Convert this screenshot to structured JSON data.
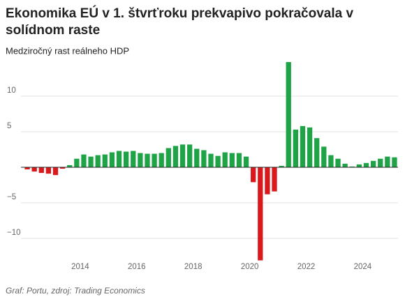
{
  "chart_data": {
    "type": "bar",
    "title": [
      "Ekonomika EÚ v 1. štvrťroku prekvapivo pokračovala v",
      "solídnom raste"
    ],
    "subtitle": "Medziročný rast reálneho HDP",
    "footer": "Graf: Portu, zdroj: Trading Economics",
    "categories": [
      null,
      null,
      null,
      null,
      null,
      null,
      null,
      null,
      "2014",
      null,
      null,
      null,
      null,
      null,
      null,
      null,
      "2016",
      null,
      null,
      null,
      null,
      null,
      null,
      null,
      "2018",
      null,
      null,
      null,
      null,
      null,
      null,
      null,
      "2020",
      null,
      null,
      null,
      null,
      null,
      null,
      null,
      "2022",
      null,
      null,
      null,
      null,
      null,
      null,
      null,
      "2024",
      null,
      null,
      null,
      null
    ],
    "values": [
      -0.3,
      -0.6,
      -0.8,
      -0.9,
      -1.1,
      -0.2,
      0.3,
      1.2,
      1.8,
      1.5,
      1.7,
      1.8,
      2.1,
      2.3,
      2.2,
      2.3,
      2.0,
      1.9,
      1.9,
      2.0,
      2.7,
      3.0,
      3.2,
      3.2,
      2.6,
      2.4,
      1.9,
      1.6,
      2.1,
      2.0,
      2.0,
      1.5,
      -2.1,
      -13.1,
      -3.8,
      -3.4,
      0.2,
      14.8,
      5.3,
      5.8,
      5.6,
      4.1,
      2.9,
      1.7,
      1.2,
      0.5,
      0.1,
      0.4,
      0.6,
      0.9,
      1.2,
      1.5,
      1.4
    ],
    "positive_color": "#1fa347",
    "negative_color": "#d9191c",
    "ylim": [
      -13.2,
      15
    ],
    "yticks": [
      {
        "value": -10,
        "label": "−10"
      },
      {
        "value": -5,
        "label": "−5"
      },
      5,
      10
    ],
    "grid": true
  }
}
